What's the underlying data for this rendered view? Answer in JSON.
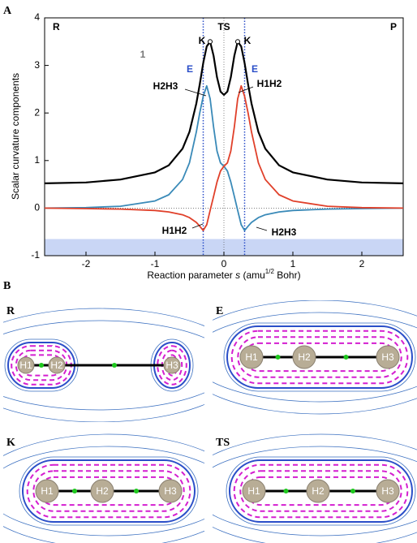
{
  "chart_data": {
    "type": "line",
    "panel_label": "A",
    "ylabel": "Scalar curvature components",
    "xlabel_parts": [
      "Reaction parameter ",
      "s",
      " (amu",
      "1/2",
      " Bohr)"
    ],
    "xlim": [
      -2.6,
      2.6
    ],
    "ylim": [
      -1,
      4
    ],
    "xticks": [
      -2,
      -1,
      0,
      1,
      2
    ],
    "yticks": [
      -1,
      0,
      1,
      2,
      3,
      4
    ],
    "x": [
      -2.6,
      -2,
      -1.5,
      -1,
      -0.8,
      -0.6,
      -0.5,
      -0.4,
      -0.35,
      -0.3,
      -0.25,
      -0.2,
      -0.15,
      -0.1,
      -0.05,
      0,
      0.05,
      0.1,
      0.15,
      0.2,
      0.25,
      0.3,
      0.35,
      0.4,
      0.5,
      0.6,
      0.8,
      1,
      1.5,
      2,
      2.6
    ],
    "series": [
      {
        "color": "#000000",
        "values": [
          0.52,
          0.54,
          0.6,
          0.75,
          0.9,
          1.25,
          1.6,
          2.2,
          2.6,
          3.05,
          3.4,
          3.5,
          3.2,
          2.75,
          2.45,
          2.38,
          2.45,
          2.75,
          3.2,
          3.5,
          3.4,
          3.05,
          2.6,
          2.2,
          1.6,
          1.25,
          0.9,
          0.75,
          0.6,
          0.54,
          0.52
        ]
      },
      {
        "color": "#3a8ab8",
        "values": [
          0,
          0.01,
          0.04,
          0.15,
          0.28,
          0.6,
          0.95,
          1.6,
          2.0,
          2.35,
          2.57,
          2.3,
          1.7,
          1.2,
          0.95,
          0.88,
          0.78,
          0.55,
          0.25,
          -0.05,
          -0.35,
          -0.47,
          -0.38,
          -0.3,
          -0.2,
          -0.14,
          -0.08,
          -0.05,
          -0.02,
          -0.01,
          0
        ]
      },
      {
        "color": "#e0402a",
        "values": [
          0,
          -0.01,
          -0.02,
          -0.05,
          -0.08,
          -0.14,
          -0.2,
          -0.3,
          -0.38,
          -0.47,
          -0.35,
          -0.05,
          0.25,
          0.55,
          0.78,
          0.88,
          0.95,
          1.2,
          1.7,
          2.3,
          2.57,
          2.35,
          2.0,
          1.6,
          0.95,
          0.6,
          0.28,
          0.15,
          0.04,
          0.01,
          0
        ]
      }
    ],
    "e_lines": [
      -0.3,
      0.3
    ],
    "band": [
      -1,
      -0.65
    ],
    "band_color": "#c9d6f5",
    "annotations": [
      "R",
      "TS",
      "P",
      "K",
      "K",
      "E",
      "E",
      "1",
      "H2H3",
      "H1H2",
      "H1H2",
      "H2H3"
    ]
  },
  "panel_b": {
    "label": "B",
    "panels": [
      {
        "label": "R",
        "atoms": [
          "H1",
          "H2",
          "H3"
        ]
      },
      {
        "label": "E",
        "atoms": [
          "H1",
          "H2",
          "H3"
        ]
      },
      {
        "label": "K",
        "atoms": [
          "H1",
          "H2",
          "H3"
        ]
      },
      {
        "label": "TS",
        "atoms": [
          "H1",
          "H2",
          "H3"
        ]
      }
    ]
  }
}
